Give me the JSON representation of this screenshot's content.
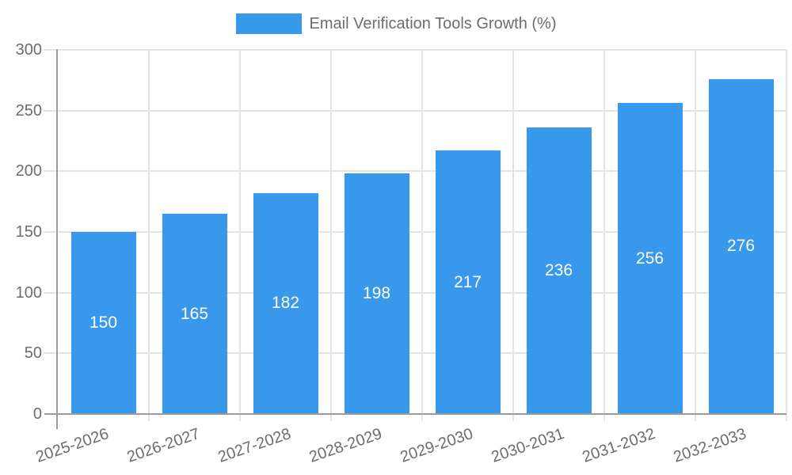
{
  "legend": {
    "label": "Email Verification Tools Growth (%)"
  },
  "colors": {
    "bar": "#3899ec",
    "grid": "#e4e4e4",
    "axis": "#9c9c9c",
    "text": "#6d6d6d",
    "value_text": "#ffffff",
    "background": "#ffffff"
  },
  "chart_data": {
    "type": "bar",
    "title": "Email Verification Tools Growth (%)",
    "categories": [
      "2025-2026",
      "2026-2027",
      "2027-2028",
      "2028-2029",
      "2029-2030",
      "2030-2031",
      "2031-2032",
      "2032-2033"
    ],
    "values": [
      150,
      165,
      182,
      198,
      217,
      236,
      256,
      276
    ],
    "value_labels": [
      "150",
      "165",
      "182",
      "198",
      "217",
      "236",
      "256",
      "276"
    ],
    "xlabel": "",
    "ylabel": "",
    "ylim": [
      0,
      300
    ],
    "yticks": [
      0,
      50,
      100,
      150,
      200,
      250,
      300
    ],
    "ytick_labels": [
      "0",
      "50",
      "100",
      "150",
      "200",
      "250",
      "300"
    ],
    "grid": true,
    "legend_position": "top",
    "value_label_position": "inside-center"
  }
}
